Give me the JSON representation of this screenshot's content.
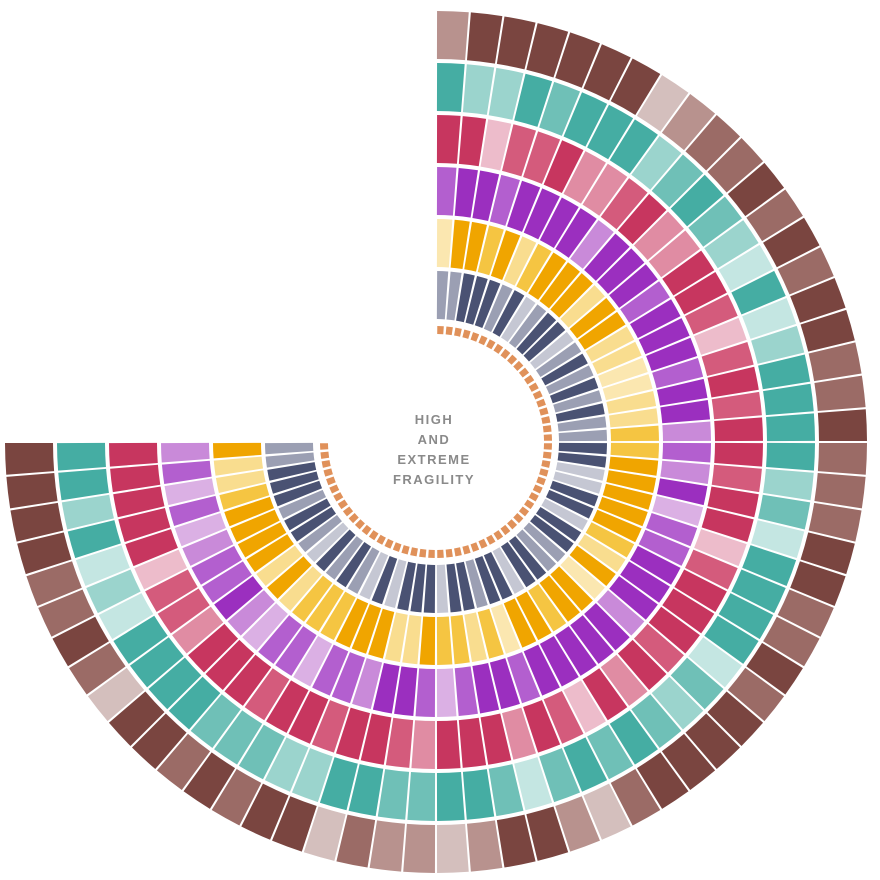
{
  "chart_data": {
    "type": "radial-heatmap",
    "title": "",
    "center_label_lines": [
      "HIGH",
      "AND",
      "EXTREME",
      "FRAGILITY"
    ],
    "sweep_degrees": 270,
    "start_direction": "top (12 o'clock), clockwise",
    "segment_count": 60,
    "rings": [
      {
        "name": "",
        "palette": [
          "#4a5273",
          "#9b9fb3",
          "#c5c7d3"
        ]
      },
      {
        "name": "",
        "palette": [
          "#f0a500",
          "#f5c542",
          "#f9dd8f",
          "#fbe7b0"
        ]
      },
      {
        "name": "",
        "palette": [
          "#9b2fbf",
          "#b35fcf",
          "#c98ad9",
          "#dbb0e4"
        ]
      },
      {
        "name": "",
        "palette": [
          "#c7365f",
          "#d45b7c",
          "#e08ca3",
          "#edbccb"
        ]
      },
      {
        "name": "",
        "palette": [
          "#45ada3",
          "#6fc0b7",
          "#9bd4cd",
          "#c4e6e2"
        ]
      },
      {
        "name": "",
        "palette": [
          "#7a4540",
          "#9b6b66",
          "#b8928e",
          "#d4bfbd"
        ]
      }
    ],
    "inner_track_color": "#e0915a",
    "legend": "none",
    "grid": false
  }
}
